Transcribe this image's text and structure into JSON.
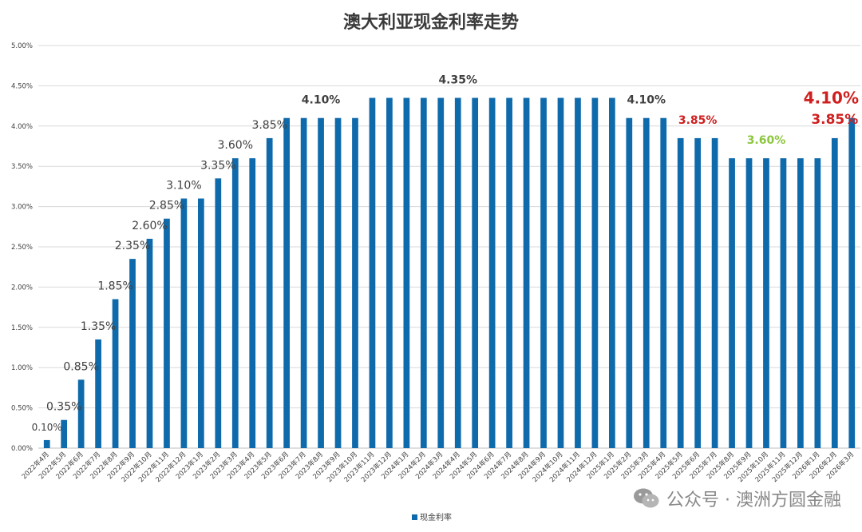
{
  "chart_data": {
    "type": "bar",
    "title": "澳大利亚现金利率走势",
    "legend": {
      "label": "现金利率",
      "position": "bottom"
    },
    "ylim": [
      0,
      5
    ],
    "y_ticks": [
      "0.00%",
      "0.50%",
      "1.00%",
      "1.50%",
      "2.00%",
      "2.50%",
      "3.00%",
      "3.50%",
      "4.00%",
      "4.50%",
      "5.00%"
    ],
    "y_tick_values": [
      0,
      0.5,
      1,
      1.5,
      2,
      2.5,
      3,
      3.5,
      4,
      4.5,
      5
    ],
    "grid": true,
    "categories": [
      "2022年4月",
      "2022年5月",
      "2022年6月",
      "2022年7月",
      "2022年8月",
      "2022年9月",
      "2022年10月",
      "2022年11月",
      "2022年12月",
      "2023年1月",
      "2023年2月",
      "2023年3月",
      "2023年4月",
      "2023年5月",
      "2023年6月",
      "2023年7月",
      "2023年8月",
      "2023年9月",
      "2023年10月",
      "2023年11月",
      "2023年12月",
      "2024年1月",
      "2024年2月",
      "2024年3月",
      "2024年4月",
      "2024年5月",
      "2024年6月",
      "2024年7月",
      "2024年8月",
      "2024年9月",
      "2024年10月",
      "2024年11月",
      "2024年12月",
      "2025年1月",
      "2025年2月",
      "2025年3月",
      "2025年4月",
      "2025年5月",
      "2025年6月",
      "2025年7月",
      "2025年8月",
      "2025年9月",
      "2025年10月",
      "2025年11月",
      "2025年12月",
      "2026年1月",
      "2026年2月",
      "2026年3月"
    ],
    "series": [
      {
        "name": "现金利率",
        "color": "#0f6aab",
        "values": [
          0.1,
          0.35,
          0.85,
          1.35,
          1.85,
          2.35,
          2.6,
          2.85,
          3.1,
          3.1,
          3.35,
          3.6,
          3.6,
          3.85,
          4.1,
          4.1,
          4.1,
          4.1,
          4.1,
          4.35,
          4.35,
          4.35,
          4.35,
          4.35,
          4.35,
          4.35,
          4.35,
          4.35,
          4.35,
          4.35,
          4.35,
          4.35,
          4.35,
          4.35,
          4.1,
          4.1,
          4.1,
          3.85,
          3.85,
          3.85,
          3.6,
          3.6,
          3.6,
          3.6,
          3.6,
          3.6,
          3.85,
          4.1
        ]
      }
    ],
    "annotations": [
      {
        "text": "0.10%",
        "index": 0,
        "color": "#404040",
        "size": "small",
        "weight": "normal"
      },
      {
        "text": "0.35%",
        "index": 1,
        "color": "#404040",
        "size": "medium",
        "weight": "normal"
      },
      {
        "text": "0.85%",
        "index": 2,
        "color": "#404040",
        "size": "medium",
        "weight": "normal"
      },
      {
        "text": "1.35%",
        "index": 3,
        "color": "#404040",
        "size": "medium",
        "weight": "normal"
      },
      {
        "text": "1.85%",
        "index": 4,
        "color": "#404040",
        "size": "medium",
        "weight": "normal"
      },
      {
        "text": "2.35%",
        "index": 5,
        "color": "#404040",
        "size": "medium",
        "weight": "normal"
      },
      {
        "text": "2.60%",
        "index": 6,
        "color": "#404040",
        "size": "medium",
        "weight": "normal"
      },
      {
        "text": "2.85%",
        "index": 7,
        "color": "#404040",
        "size": "medium",
        "weight": "normal"
      },
      {
        "text": "3.10%",
        "index": 8,
        "color": "#404040",
        "size": "medium",
        "weight": "normal"
      },
      {
        "text": "3.35%",
        "index": 10,
        "color": "#404040",
        "size": "medium",
        "weight": "normal"
      },
      {
        "text": "3.60%",
        "index": 11,
        "color": "#404040",
        "size": "medium",
        "weight": "normal"
      },
      {
        "text": "3.85%",
        "index": 13,
        "color": "#404040",
        "size": "medium",
        "weight": "normal"
      },
      {
        "text": "4.10%",
        "index": 16,
        "color": "#404040",
        "size": "medium",
        "weight": "bold"
      },
      {
        "text": "4.35%",
        "index": 24,
        "color": "#404040",
        "size": "medium",
        "weight": "bold"
      },
      {
        "text": "4.10%",
        "index": 35,
        "color": "#404040",
        "size": "medium",
        "weight": "bold"
      },
      {
        "text": "3.85%",
        "index": 38,
        "color": "#d01f1f",
        "size": "medium",
        "weight": "bold"
      },
      {
        "text": "3.60%",
        "index": 42,
        "color": "#8cc63f",
        "size": "medium",
        "weight": "bold"
      },
      {
        "text": "3.85%",
        "index": 46,
        "color": "#d01f1f",
        "size": "large",
        "weight": "bold"
      },
      {
        "text": "4.10%",
        "index": 47,
        "color": "#d01f1f",
        "size": "xlarge",
        "weight": "bold"
      }
    ]
  },
  "watermark": {
    "icon": "wechat-icon",
    "text": "公众号 · 澳洲方圆金融"
  }
}
